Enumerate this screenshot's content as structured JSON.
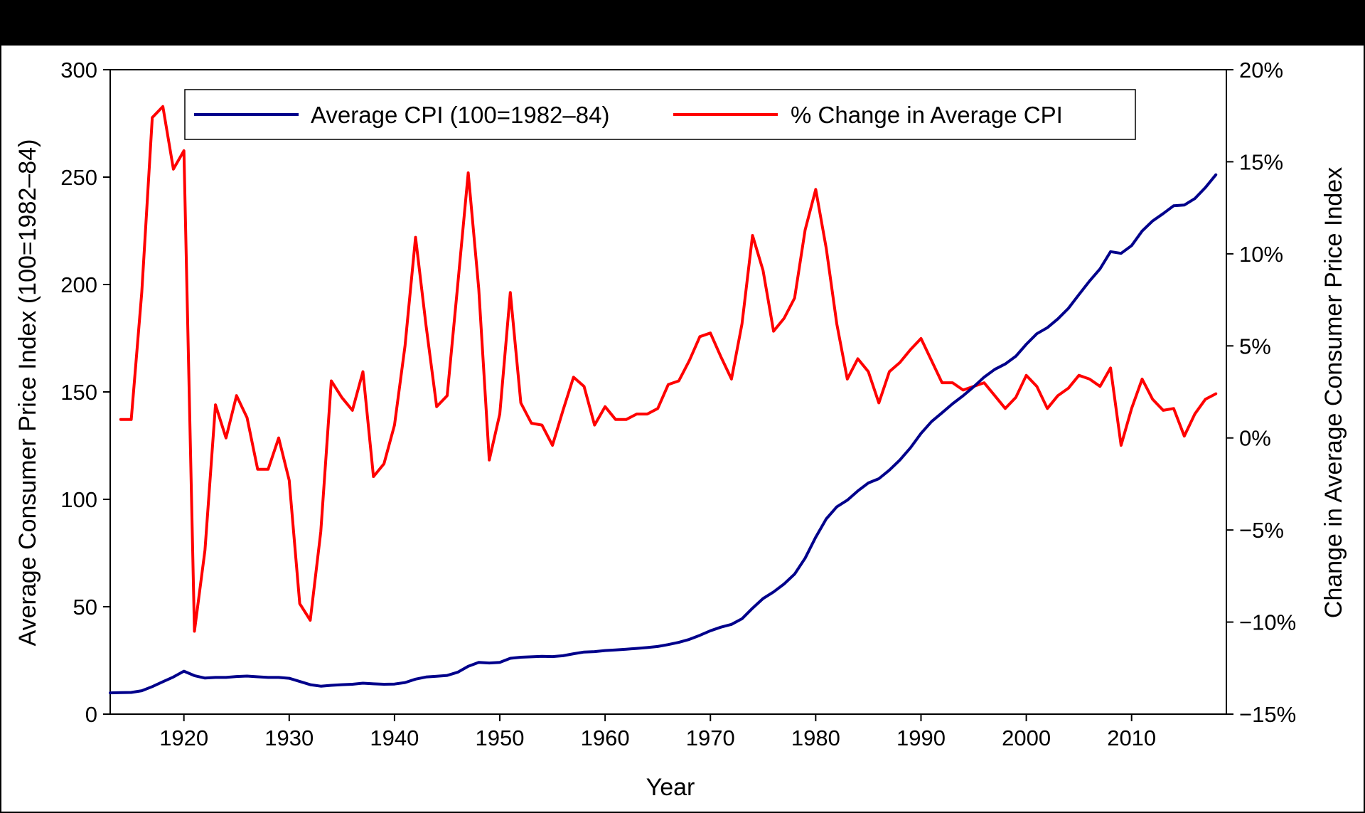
{
  "chart_data": {
    "type": "line",
    "xlabel": "Year",
    "ylabel_left": "Average Consumer Price Index (100=1982–84)",
    "ylabel_right": "Change in Average Consumer Price Index",
    "xlim": [
      1913,
      2019
    ],
    "ylim_left": [
      0,
      300
    ],
    "ylim_right": [
      -15,
      20
    ],
    "x_ticks": [
      1920,
      1930,
      1940,
      1950,
      1960,
      1970,
      1980,
      1990,
      2000,
      2010
    ],
    "y_ticks_left": [
      {
        "value": 0,
        "label": "0"
      },
      {
        "value": 50,
        "label": "50"
      },
      {
        "value": 100,
        "label": "100"
      },
      {
        "value": 150,
        "label": "150"
      },
      {
        "value": 200,
        "label": "200"
      },
      {
        "value": 250,
        "label": "250"
      },
      {
        "value": 300,
        "label": "300"
      }
    ],
    "y_ticks_right": [
      {
        "value": 20,
        "label": "20%"
      },
      {
        "value": 15,
        "label": "15%"
      },
      {
        "value": 10,
        "label": "10%"
      },
      {
        "value": 5,
        "label": "5%"
      },
      {
        "value": 0,
        "label": "0%"
      },
      {
        "value": -5,
        "label": "−5%"
      },
      {
        "value": -10,
        "label": "−10%"
      },
      {
        "value": -15,
        "label": "−15%"
      }
    ],
    "grid": false,
    "legend_position": "top",
    "series": [
      {
        "name": "Average CPI (100=1982–84)",
        "axis": "left",
        "color": "#00008B",
        "x": [
          1913,
          1914,
          1915,
          1916,
          1917,
          1918,
          1919,
          1920,
          1921,
          1922,
          1923,
          1924,
          1925,
          1926,
          1927,
          1928,
          1929,
          1930,
          1931,
          1932,
          1933,
          1934,
          1935,
          1936,
          1937,
          1938,
          1939,
          1940,
          1941,
          1942,
          1943,
          1944,
          1945,
          1946,
          1947,
          1948,
          1949,
          1950,
          1951,
          1952,
          1953,
          1954,
          1955,
          1956,
          1957,
          1958,
          1959,
          1960,
          1961,
          1962,
          1963,
          1964,
          1965,
          1966,
          1967,
          1968,
          1969,
          1970,
          1971,
          1972,
          1973,
          1974,
          1975,
          1976,
          1977,
          1978,
          1979,
          1980,
          1981,
          1982,
          1983,
          1984,
          1985,
          1986,
          1987,
          1988,
          1989,
          1990,
          1991,
          1992,
          1993,
          1994,
          1995,
          1996,
          1997,
          1998,
          1999,
          2000,
          2001,
          2002,
          2003,
          2004,
          2005,
          2006,
          2007,
          2008,
          2009,
          2010,
          2011,
          2012,
          2013,
          2014,
          2015,
          2016,
          2017,
          2018
        ],
        "values": [
          9.9,
          10.0,
          10.1,
          10.9,
          12.8,
          15.1,
          17.3,
          20.0,
          17.9,
          16.8,
          17.1,
          17.1,
          17.5,
          17.7,
          17.4,
          17.1,
          17.1,
          16.7,
          15.2,
          13.7,
          13.0,
          13.4,
          13.7,
          13.9,
          14.4,
          14.1,
          13.9,
          14.0,
          14.7,
          16.3,
          17.3,
          17.6,
          18.0,
          19.5,
          22.3,
          24.1,
          23.8,
          24.1,
          26.0,
          26.5,
          26.7,
          26.9,
          26.8,
          27.2,
          28.1,
          28.9,
          29.1,
          29.6,
          29.9,
          30.2,
          30.6,
          31.0,
          31.5,
          32.4,
          33.4,
          34.8,
          36.7,
          38.8,
          40.5,
          41.8,
          44.4,
          49.3,
          53.8,
          56.9,
          60.6,
          65.2,
          72.6,
          82.4,
          90.9,
          96.5,
          99.6,
          103.9,
          107.6,
          109.6,
          113.6,
          118.3,
          124.0,
          130.7,
          136.2,
          140.3,
          144.5,
          148.2,
          152.4,
          156.9,
          160.5,
          163.0,
          166.6,
          172.2,
          177.1,
          179.9,
          184.0,
          188.9,
          195.3,
          201.6,
          207.3,
          215.3,
          214.5,
          218.1,
          224.9,
          229.6,
          233.0,
          236.7,
          237.0,
          240.0,
          245.1,
          251.1
        ]
      },
      {
        "name": "% Change in Average CPI",
        "axis": "right",
        "color": "#FF0000",
        "x": [
          1914,
          1915,
          1916,
          1917,
          1918,
          1919,
          1920,
          1921,
          1922,
          1923,
          1924,
          1925,
          1926,
          1927,
          1928,
          1929,
          1930,
          1931,
          1932,
          1933,
          1934,
          1935,
          1936,
          1937,
          1938,
          1939,
          1940,
          1941,
          1942,
          1943,
          1944,
          1945,
          1946,
          1947,
          1948,
          1949,
          1950,
          1951,
          1952,
          1953,
          1954,
          1955,
          1956,
          1957,
          1958,
          1959,
          1960,
          1961,
          1962,
          1963,
          1964,
          1965,
          1966,
          1967,
          1968,
          1969,
          1970,
          1971,
          1972,
          1973,
          1974,
          1975,
          1976,
          1977,
          1978,
          1979,
          1980,
          1981,
          1982,
          1983,
          1984,
          1985,
          1986,
          1987,
          1988,
          1989,
          1990,
          1991,
          1992,
          1993,
          1994,
          1995,
          1996,
          1997,
          1998,
          1999,
          2000,
          2001,
          2002,
          2003,
          2004,
          2005,
          2006,
          2007,
          2008,
          2009,
          2010,
          2011,
          2012,
          2013,
          2014,
          2015,
          2016,
          2017,
          2018
        ],
        "values": [
          1.0,
          1.0,
          7.9,
          17.4,
          18.0,
          14.6,
          15.6,
          -10.5,
          -6.1,
          1.8,
          0.0,
          2.3,
          1.1,
          -1.7,
          -1.7,
          0.0,
          -2.3,
          -9.0,
          -9.9,
          -5.1,
          3.1,
          2.2,
          1.5,
          3.6,
          -2.1,
          -1.4,
          0.7,
          5.0,
          10.9,
          6.1,
          1.7,
          2.3,
          8.3,
          14.4,
          8.1,
          -1.2,
          1.3,
          7.9,
          1.9,
          0.8,
          0.7,
          -0.4,
          1.5,
          3.3,
          2.8,
          0.7,
          1.7,
          1.0,
          1.0,
          1.3,
          1.3,
          1.6,
          2.9,
          3.1,
          4.2,
          5.5,
          5.7,
          4.4,
          3.2,
          6.2,
          11.0,
          9.1,
          5.8,
          6.5,
          7.6,
          11.3,
          13.5,
          10.3,
          6.2,
          3.2,
          4.3,
          3.6,
          1.9,
          3.6,
          4.1,
          4.8,
          5.4,
          4.2,
          3.0,
          3.0,
          2.6,
          2.8,
          3.0,
          2.3,
          1.6,
          2.2,
          3.4,
          2.8,
          1.6,
          2.3,
          2.7,
          3.4,
          3.2,
          2.8,
          3.8,
          -0.4,
          1.6,
          3.2,
          2.1,
          1.5,
          1.6,
          0.1,
          1.3,
          2.1,
          2.4
        ]
      }
    ]
  }
}
